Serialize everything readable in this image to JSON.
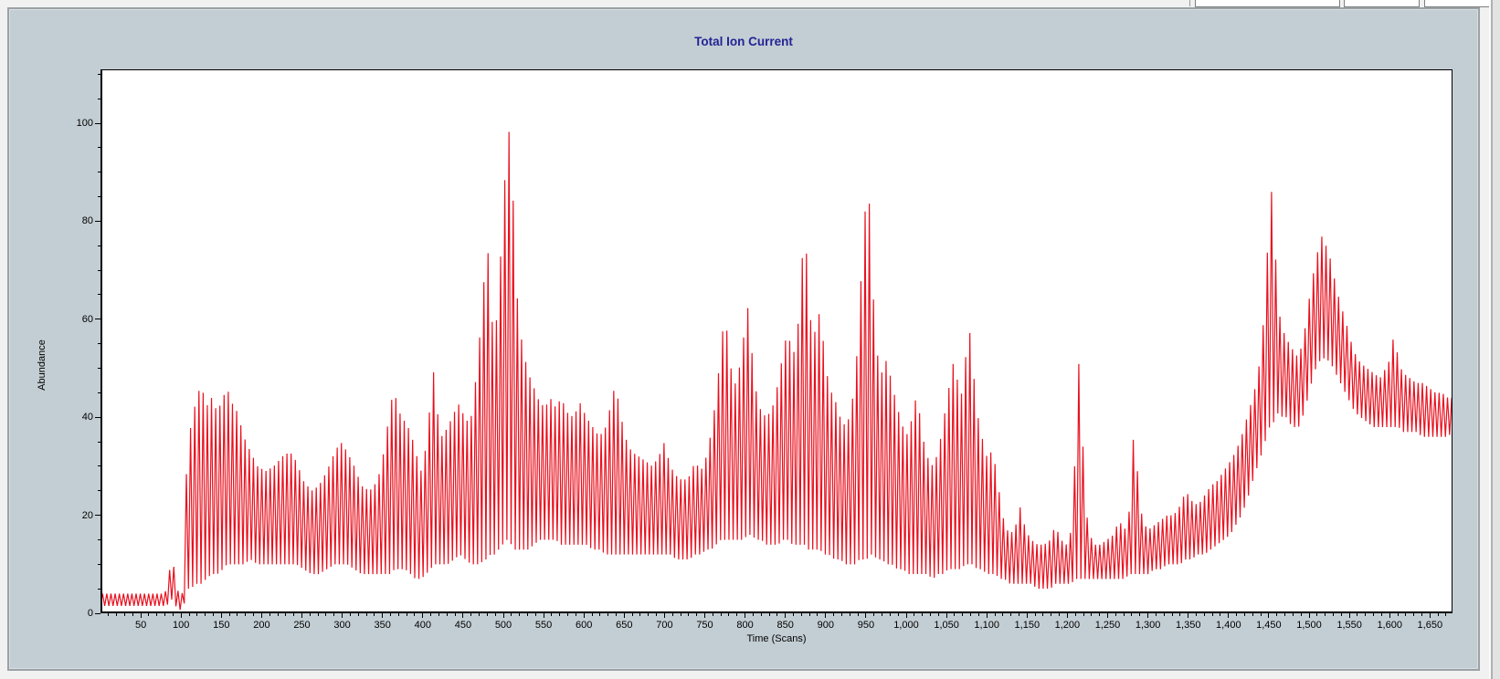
{
  "chart_data": {
    "type": "line",
    "title": "Total Ion Current",
    "xlabel": "Time (Scans)",
    "ylabel": "Abundance",
    "xlim": [
      0,
      1678
    ],
    "ylim": [
      0,
      111
    ],
    "grid": false,
    "legend": false,
    "series_color": "#e8101e",
    "oscillation_step_scans": 2.6,
    "x_minor_step": 10,
    "y_minor_step": 5,
    "xticks": [
      {
        "v": 50,
        "label": "50"
      },
      {
        "v": 100,
        "label": "100"
      },
      {
        "v": 150,
        "label": "150"
      },
      {
        "v": 200,
        "label": "200"
      },
      {
        "v": 250,
        "label": "250"
      },
      {
        "v": 300,
        "label": "300"
      },
      {
        "v": 350,
        "label": "350"
      },
      {
        "v": 400,
        "label": "400"
      },
      {
        "v": 450,
        "label": "450"
      },
      {
        "v": 500,
        "label": "500"
      },
      {
        "v": 550,
        "label": "550"
      },
      {
        "v": 600,
        "label": "600"
      },
      {
        "v": 650,
        "label": "650"
      },
      {
        "v": 700,
        "label": "700"
      },
      {
        "v": 750,
        "label": "750"
      },
      {
        "v": 800,
        "label": "800"
      },
      {
        "v": 850,
        "label": "850"
      },
      {
        "v": 900,
        "label": "900"
      },
      {
        "v": 950,
        "label": "950"
      },
      {
        "v": 1000,
        "label": "1,000"
      },
      {
        "v": 1050,
        "label": "1,050"
      },
      {
        "v": 1100,
        "label": "1,100"
      },
      {
        "v": 1150,
        "label": "1,150"
      },
      {
        "v": 1200,
        "label": "1,200"
      },
      {
        "v": 1250,
        "label": "1,250"
      },
      {
        "v": 1300,
        "label": "1,300"
      },
      {
        "v": 1350,
        "label": "1,350"
      },
      {
        "v": 1400,
        "label": "1,400"
      },
      {
        "v": 1450,
        "label": "1,450"
      },
      {
        "v": 1500,
        "label": "1,500"
      },
      {
        "v": 1550,
        "label": "1,550"
      },
      {
        "v": 1600,
        "label": "1,600"
      },
      {
        "v": 1650,
        "label": "1,650"
      }
    ],
    "yticks": [
      {
        "v": 0,
        "label": "0"
      },
      {
        "v": 20,
        "label": "20"
      },
      {
        "v": 40,
        "label": "40"
      },
      {
        "v": 60,
        "label": "60"
      },
      {
        "v": 80,
        "label": "80"
      },
      {
        "v": 100,
        "label": "100"
      }
    ],
    "major_peaks": [
      [
        125,
        47
      ],
      [
        157,
        46
      ],
      [
        298,
        35
      ],
      [
        365,
        45
      ],
      [
        413,
        50
      ],
      [
        480,
        77
      ],
      [
        506,
        100
      ],
      [
        639,
        47
      ],
      [
        775,
        62
      ],
      [
        805,
        63
      ],
      [
        853,
        58
      ],
      [
        874,
        80
      ],
      [
        893,
        62
      ],
      [
        951,
        86
      ],
      [
        976,
        52
      ],
      [
        1014,
        45
      ],
      [
        1058,
        51
      ],
      [
        1078,
        59
      ],
      [
        1142,
        22
      ],
      [
        1213,
        53
      ],
      [
        1282,
        36
      ],
      [
        1454,
        87
      ],
      [
        1516,
        77
      ],
      [
        1606,
        58
      ]
    ],
    "envelope": [
      [
        0,
        1.5,
        4
      ],
      [
        80,
        1.5,
        4
      ],
      [
        86,
        2,
        9
      ],
      [
        89,
        3,
        12
      ],
      [
        93,
        1.5,
        7
      ],
      [
        97,
        1,
        4
      ],
      [
        100,
        0.5,
        2.5
      ],
      [
        103,
        1,
        6
      ],
      [
        105,
        3,
        22
      ],
      [
        108,
        5,
        34
      ],
      [
        112,
        5,
        38
      ],
      [
        118,
        6,
        43
      ],
      [
        125,
        6,
        47
      ],
      [
        131,
        7,
        42
      ],
      [
        138,
        8,
        44
      ],
      [
        145,
        8,
        41
      ],
      [
        152,
        9,
        44
      ],
      [
        157,
        10,
        46
      ],
      [
        163,
        10,
        43
      ],
      [
        170,
        10,
        41
      ],
      [
        178,
        10,
        36
      ],
      [
        186,
        11,
        33
      ],
      [
        195,
        10,
        30
      ],
      [
        205,
        10,
        29
      ],
      [
        215,
        10,
        30
      ],
      [
        226,
        10,
        32
      ],
      [
        235,
        10,
        33
      ],
      [
        243,
        10,
        31
      ],
      [
        252,
        9,
        27
      ],
      [
        262,
        8,
        25
      ],
      [
        271,
        8,
        26
      ],
      [
        281,
        9,
        29
      ],
      [
        291,
        10,
        33
      ],
      [
        298,
        10,
        35
      ],
      [
        306,
        10,
        33
      ],
      [
        315,
        9,
        30
      ],
      [
        324,
        8,
        26
      ],
      [
        334,
        8,
        25
      ],
      [
        344,
        8,
        27
      ],
      [
        353,
        8,
        34
      ],
      [
        360,
        8,
        43
      ],
      [
        365,
        9,
        45
      ],
      [
        371,
        9,
        41
      ],
      [
        378,
        9,
        39
      ],
      [
        385,
        8,
        37
      ],
      [
        391,
        7,
        33
      ],
      [
        398,
        7,
        29
      ],
      [
        404,
        8,
        34
      ],
      [
        410,
        9,
        44
      ],
      [
        413,
        10,
        50
      ],
      [
        417,
        10,
        42
      ],
      [
        424,
        10,
        36
      ],
      [
        431,
        10,
        38
      ],
      [
        439,
        11,
        41
      ],
      [
        446,
        12,
        43
      ],
      [
        453,
        11,
        39
      ],
      [
        460,
        10,
        40
      ],
      [
        466,
        10,
        48
      ],
      [
        471,
        10,
        57
      ],
      [
        476,
        11,
        68
      ],
      [
        480,
        11,
        77
      ],
      [
        484,
        12,
        63
      ],
      [
        489,
        12,
        55
      ],
      [
        494,
        13,
        65
      ],
      [
        499,
        14,
        80
      ],
      [
        503,
        15,
        92
      ],
      [
        506,
        15,
        100
      ],
      [
        510,
        14,
        93
      ],
      [
        514,
        13,
        77
      ],
      [
        518,
        13,
        62
      ],
      [
        524,
        13,
        54
      ],
      [
        531,
        13,
        49
      ],
      [
        538,
        14,
        46
      ],
      [
        545,
        15,
        43
      ],
      [
        552,
        15,
        42
      ],
      [
        558,
        15,
        44
      ],
      [
        565,
        15,
        42
      ],
      [
        572,
        14,
        44
      ],
      [
        579,
        14,
        41
      ],
      [
        587,
        14,
        40
      ],
      [
        595,
        14,
        43
      ],
      [
        603,
        14,
        40
      ],
      [
        611,
        13,
        38
      ],
      [
        619,
        13,
        36
      ],
      [
        627,
        12,
        38
      ],
      [
        634,
        12,
        43
      ],
      [
        639,
        12,
        47
      ],
      [
        644,
        12,
        42
      ],
      [
        651,
        12,
        36
      ],
      [
        659,
        12,
        33
      ],
      [
        668,
        12,
        32
      ],
      [
        677,
        12,
        31
      ],
      [
        685,
        12,
        30
      ],
      [
        693,
        12,
        32
      ],
      [
        700,
        12,
        35
      ],
      [
        707,
        12,
        30
      ],
      [
        715,
        11,
        28
      ],
      [
        723,
        11,
        27
      ],
      [
        731,
        11,
        28
      ],
      [
        738,
        12,
        31
      ],
      [
        745,
        12,
        29
      ],
      [
        752,
        13,
        32
      ],
      [
        758,
        13,
        37
      ],
      [
        764,
        14,
        44
      ],
      [
        770,
        15,
        54
      ],
      [
        775,
        15,
        62
      ],
      [
        780,
        15,
        53
      ],
      [
        786,
        15,
        46
      ],
      [
        792,
        15,
        49
      ],
      [
        798,
        15,
        56
      ],
      [
        803,
        16,
        63
      ],
      [
        808,
        16,
        54
      ],
      [
        814,
        15,
        45
      ],
      [
        820,
        15,
        41
      ],
      [
        827,
        14,
        40
      ],
      [
        834,
        14,
        42
      ],
      [
        841,
        14,
        47
      ],
      [
        847,
        15,
        53
      ],
      [
        853,
        15,
        58
      ],
      [
        859,
        14,
        52
      ],
      [
        865,
        14,
        57
      ],
      [
        870,
        14,
        70
      ],
      [
        874,
        14,
        80
      ],
      [
        878,
        13,
        68
      ],
      [
        883,
        13,
        56
      ],
      [
        888,
        13,
        58
      ],
      [
        893,
        13,
        62
      ],
      [
        898,
        12,
        54
      ],
      [
        904,
        12,
        46
      ],
      [
        911,
        11,
        44
      ],
      [
        918,
        11,
        40
      ],
      [
        925,
        10,
        38
      ],
      [
        931,
        10,
        41
      ],
      [
        937,
        10,
        48
      ],
      [
        942,
        11,
        62
      ],
      [
        947,
        11,
        78
      ],
      [
        951,
        11,
        86
      ],
      [
        955,
        12,
        83
      ],
      [
        959,
        12,
        65
      ],
      [
        964,
        11,
        53
      ],
      [
        970,
        11,
        49
      ],
      [
        976,
        10,
        52
      ],
      [
        982,
        10,
        47
      ],
      [
        989,
        9,
        42
      ],
      [
        996,
        9,
        38
      ],
      [
        1003,
        8,
        36
      ],
      [
        1009,
        8,
        42
      ],
      [
        1014,
        8,
        45
      ],
      [
        1019,
        8,
        37
      ],
      [
        1026,
        8,
        32
      ],
      [
        1033,
        7,
        30
      ],
      [
        1040,
        8,
        33
      ],
      [
        1046,
        8,
        39
      ],
      [
        1052,
        9,
        45
      ],
      [
        1058,
        9,
        51
      ],
      [
        1063,
        9,
        48
      ],
      [
        1068,
        9,
        44
      ],
      [
        1073,
        10,
        51
      ],
      [
        1078,
        10,
        59
      ],
      [
        1083,
        10,
        50
      ],
      [
        1088,
        9,
        41
      ],
      [
        1094,
        9,
        36
      ],
      [
        1100,
        8,
        32
      ],
      [
        1106,
        8,
        33
      ],
      [
        1111,
        8,
        30
      ],
      [
        1116,
        7,
        24
      ],
      [
        1122,
        7,
        18
      ],
      [
        1129,
        6,
        16
      ],
      [
        1136,
        6,
        18
      ],
      [
        1142,
        6,
        22
      ],
      [
        1148,
        6,
        17
      ],
      [
        1155,
        6,
        15
      ],
      [
        1163,
        5,
        14
      ],
      [
        1171,
        5,
        14
      ],
      [
        1179,
        5,
        15
      ],
      [
        1185,
        6,
        18
      ],
      [
        1192,
        6,
        15
      ],
      [
        1199,
        6,
        14
      ],
      [
        1205,
        6,
        17
      ],
      [
        1209,
        7,
        30
      ],
      [
        1213,
        7,
        53
      ],
      [
        1217,
        7,
        46
      ],
      [
        1221,
        7,
        26
      ],
      [
        1226,
        7,
        17
      ],
      [
        1233,
        7,
        14
      ],
      [
        1241,
        7,
        14
      ],
      [
        1249,
        7,
        15
      ],
      [
        1257,
        7,
        16
      ],
      [
        1264,
        7,
        19
      ],
      [
        1271,
        7,
        17
      ],
      [
        1277,
        8,
        21
      ],
      [
        1282,
        8,
        36
      ],
      [
        1287,
        8,
        29
      ],
      [
        1293,
        8,
        19
      ],
      [
        1300,
        8,
        17
      ],
      [
        1308,
        9,
        18
      ],
      [
        1316,
        9,
        19
      ],
      [
        1324,
        10,
        20
      ],
      [
        1332,
        10,
        20
      ],
      [
        1340,
        10,
        22
      ],
      [
        1347,
        11,
        25
      ],
      [
        1354,
        11,
        23
      ],
      [
        1362,
        12,
        22
      ],
      [
        1370,
        12,
        24
      ],
      [
        1378,
        13,
        26
      ],
      [
        1386,
        14,
        27
      ],
      [
        1394,
        15,
        29
      ],
      [
        1402,
        16,
        31
      ],
      [
        1409,
        18,
        33
      ],
      [
        1416,
        20,
        36
      ],
      [
        1423,
        23,
        40
      ],
      [
        1430,
        27,
        44
      ],
      [
        1436,
        30,
        48
      ],
      [
        1442,
        33,
        56
      ],
      [
        1447,
        36,
        70
      ],
      [
        1451,
        38,
        82
      ],
      [
        1454,
        38,
        87
      ],
      [
        1458,
        40,
        74
      ],
      [
        1462,
        41,
        62
      ],
      [
        1467,
        40,
        58
      ],
      [
        1472,
        40,
        56
      ],
      [
        1479,
        38,
        54
      ],
      [
        1487,
        38,
        52
      ],
      [
        1494,
        41,
        57
      ],
      [
        1500,
        45,
        64
      ],
      [
        1506,
        49,
        70
      ],
      [
        1511,
        51,
        74
      ],
      [
        1516,
        52,
        77
      ],
      [
        1521,
        52,
        75
      ],
      [
        1527,
        51,
        72
      ],
      [
        1533,
        49,
        67
      ],
      [
        1539,
        47,
        63
      ],
      [
        1545,
        45,
        60
      ],
      [
        1551,
        43,
        56
      ],
      [
        1557,
        41,
        53
      ],
      [
        1564,
        40,
        51
      ],
      [
        1572,
        39,
        50
      ],
      [
        1580,
        38,
        49
      ],
      [
        1588,
        38,
        48
      ],
      [
        1595,
        38,
        50
      ],
      [
        1601,
        38,
        52
      ],
      [
        1606,
        38,
        58
      ],
      [
        1611,
        38,
        51
      ],
      [
        1617,
        37,
        49
      ],
      [
        1625,
        37,
        48
      ],
      [
        1633,
        37,
        47
      ],
      [
        1641,
        36,
        47
      ],
      [
        1649,
        36,
        46
      ],
      [
        1657,
        36,
        45
      ],
      [
        1665,
        36,
        45
      ],
      [
        1672,
        36,
        44
      ],
      [
        1678,
        37,
        44
      ]
    ]
  },
  "colors": {
    "panel_bg": "#c3ced4",
    "plot_bg": "#ffffff",
    "axis": "#000000",
    "title": "#232394",
    "trace": "#e8101e",
    "desktop_bg": "#f1f1f1"
  }
}
